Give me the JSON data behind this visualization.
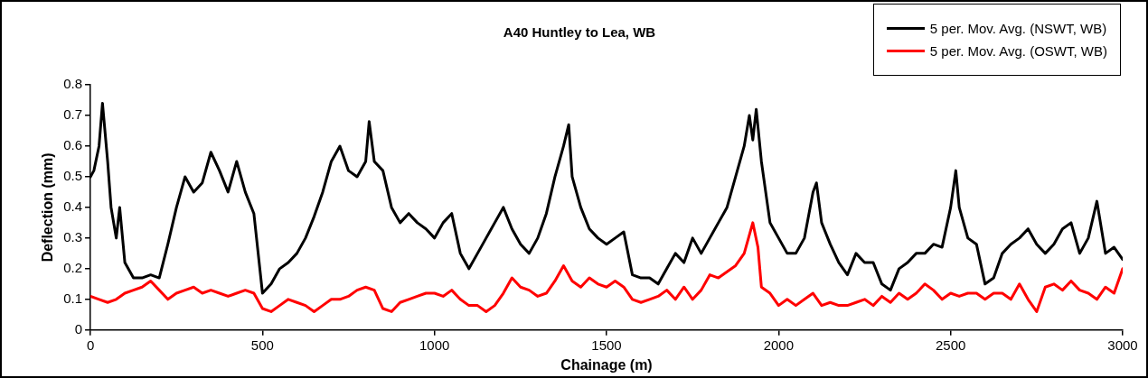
{
  "chart_data": {
    "type": "line",
    "title": "A40 Huntley to Lea, WB",
    "xlabel": "Chainage (m)",
    "ylabel": "Deflection (mm)",
    "xlim": [
      0,
      3000
    ],
    "xticks": [
      0,
      500,
      1000,
      1500,
      2000,
      2500,
      3000
    ],
    "ylim": [
      0,
      0.8
    ],
    "yticks": [
      0,
      0.1,
      0.2,
      0.3,
      0.4,
      0.5,
      0.6,
      0.7,
      0.8
    ],
    "grid": false,
    "legend": "top right",
    "marker": "none",
    "line_style": "solid",
    "series": [
      {
        "name": "5 per. Mov. Avg. (NSWT, WB)",
        "color": "#000000",
        "x": [
          0,
          10,
          25,
          35,
          50,
          60,
          75,
          85,
          100,
          125,
          150,
          175,
          200,
          225,
          250,
          275,
          300,
          325,
          350,
          375,
          400,
          425,
          450,
          475,
          500,
          525,
          550,
          575,
          600,
          625,
          650,
          675,
          700,
          725,
          750,
          775,
          800,
          810,
          825,
          850,
          875,
          900,
          925,
          950,
          975,
          1000,
          1025,
          1050,
          1075,
          1100,
          1125,
          1150,
          1175,
          1200,
          1225,
          1250,
          1275,
          1300,
          1325,
          1350,
          1375,
          1390,
          1400,
          1425,
          1450,
          1475,
          1500,
          1525,
          1550,
          1575,
          1600,
          1625,
          1650,
          1675,
          1700,
          1725,
          1750,
          1775,
          1800,
          1825,
          1850,
          1875,
          1900,
          1915,
          1925,
          1935,
          1950,
          1975,
          2000,
          2025,
          2050,
          2075,
          2100,
          2110,
          2125,
          2150,
          2175,
          2200,
          2225,
          2250,
          2275,
          2300,
          2325,
          2350,
          2375,
          2400,
          2425,
          2450,
          2475,
          2500,
          2515,
          2525,
          2550,
          2575,
          2600,
          2625,
          2650,
          2675,
          2700,
          2725,
          2750,
          2775,
          2800,
          2825,
          2850,
          2875,
          2900,
          2925,
          2950,
          2975,
          3000
        ],
        "values": [
          0.5,
          0.52,
          0.6,
          0.74,
          0.55,
          0.4,
          0.3,
          0.4,
          0.22,
          0.17,
          0.17,
          0.18,
          0.17,
          0.28,
          0.4,
          0.5,
          0.45,
          0.48,
          0.58,
          0.52,
          0.45,
          0.55,
          0.45,
          0.38,
          0.12,
          0.15,
          0.2,
          0.22,
          0.25,
          0.3,
          0.37,
          0.45,
          0.55,
          0.6,
          0.52,
          0.5,
          0.55,
          0.68,
          0.55,
          0.52,
          0.4,
          0.35,
          0.38,
          0.35,
          0.33,
          0.3,
          0.35,
          0.38,
          0.25,
          0.2,
          0.25,
          0.3,
          0.35,
          0.4,
          0.33,
          0.28,
          0.25,
          0.3,
          0.38,
          0.5,
          0.6,
          0.67,
          0.5,
          0.4,
          0.33,
          0.3,
          0.28,
          0.3,
          0.32,
          0.18,
          0.17,
          0.17,
          0.15,
          0.2,
          0.25,
          0.22,
          0.3,
          0.25,
          0.3,
          0.35,
          0.4,
          0.5,
          0.6,
          0.7,
          0.62,
          0.72,
          0.55,
          0.35,
          0.3,
          0.25,
          0.25,
          0.3,
          0.45,
          0.48,
          0.35,
          0.28,
          0.22,
          0.18,
          0.25,
          0.22,
          0.22,
          0.15,
          0.13,
          0.2,
          0.22,
          0.25,
          0.25,
          0.28,
          0.27,
          0.4,
          0.52,
          0.4,
          0.3,
          0.28,
          0.15,
          0.17,
          0.25,
          0.28,
          0.3,
          0.33,
          0.28,
          0.25,
          0.28,
          0.33,
          0.35,
          0.25,
          0.3,
          0.42,
          0.25,
          0.27,
          0.23
        ]
      },
      {
        "name": "5 per. Mov. Avg. (OSWT, WB)",
        "color": "#ff0000",
        "x": [
          0,
          25,
          50,
          75,
          100,
          125,
          150,
          175,
          200,
          225,
          250,
          275,
          300,
          325,
          350,
          375,
          400,
          425,
          450,
          475,
          500,
          525,
          550,
          575,
          600,
          625,
          650,
          675,
          700,
          725,
          750,
          775,
          800,
          825,
          850,
          875,
          900,
          925,
          950,
          975,
          1000,
          1025,
          1050,
          1075,
          1100,
          1125,
          1150,
          1175,
          1200,
          1225,
          1250,
          1275,
          1300,
          1325,
          1350,
          1375,
          1400,
          1425,
          1450,
          1475,
          1500,
          1525,
          1550,
          1575,
          1600,
          1625,
          1650,
          1675,
          1700,
          1725,
          1750,
          1775,
          1800,
          1825,
          1850,
          1875,
          1900,
          1925,
          1940,
          1950,
          1975,
          2000,
          2025,
          2050,
          2075,
          2100,
          2125,
          2150,
          2175,
          2200,
          2225,
          2250,
          2275,
          2300,
          2325,
          2350,
          2375,
          2400,
          2425,
          2450,
          2475,
          2500,
          2525,
          2550,
          2575,
          2600,
          2625,
          2650,
          2675,
          2700,
          2725,
          2750,
          2775,
          2800,
          2825,
          2850,
          2875,
          2900,
          2925,
          2950,
          2975,
          3000
        ],
        "values": [
          0.11,
          0.1,
          0.09,
          0.1,
          0.12,
          0.13,
          0.14,
          0.16,
          0.13,
          0.1,
          0.12,
          0.13,
          0.14,
          0.12,
          0.13,
          0.12,
          0.11,
          0.12,
          0.13,
          0.12,
          0.07,
          0.06,
          0.08,
          0.1,
          0.09,
          0.08,
          0.06,
          0.08,
          0.1,
          0.1,
          0.11,
          0.13,
          0.14,
          0.13,
          0.07,
          0.06,
          0.09,
          0.1,
          0.11,
          0.12,
          0.12,
          0.11,
          0.13,
          0.1,
          0.08,
          0.08,
          0.06,
          0.08,
          0.12,
          0.17,
          0.14,
          0.13,
          0.11,
          0.12,
          0.16,
          0.21,
          0.16,
          0.14,
          0.17,
          0.15,
          0.14,
          0.16,
          0.14,
          0.1,
          0.09,
          0.1,
          0.11,
          0.13,
          0.1,
          0.14,
          0.1,
          0.13,
          0.18,
          0.17,
          0.19,
          0.21,
          0.25,
          0.35,
          0.27,
          0.14,
          0.12,
          0.08,
          0.1,
          0.08,
          0.1,
          0.12,
          0.08,
          0.09,
          0.08,
          0.08,
          0.09,
          0.1,
          0.08,
          0.11,
          0.09,
          0.12,
          0.1,
          0.12,
          0.15,
          0.13,
          0.1,
          0.12,
          0.11,
          0.12,
          0.12,
          0.1,
          0.12,
          0.12,
          0.1,
          0.15,
          0.1,
          0.06,
          0.14,
          0.15,
          0.13,
          0.16,
          0.13,
          0.12,
          0.1,
          0.14,
          0.12,
          0.2
        ]
      }
    ]
  }
}
